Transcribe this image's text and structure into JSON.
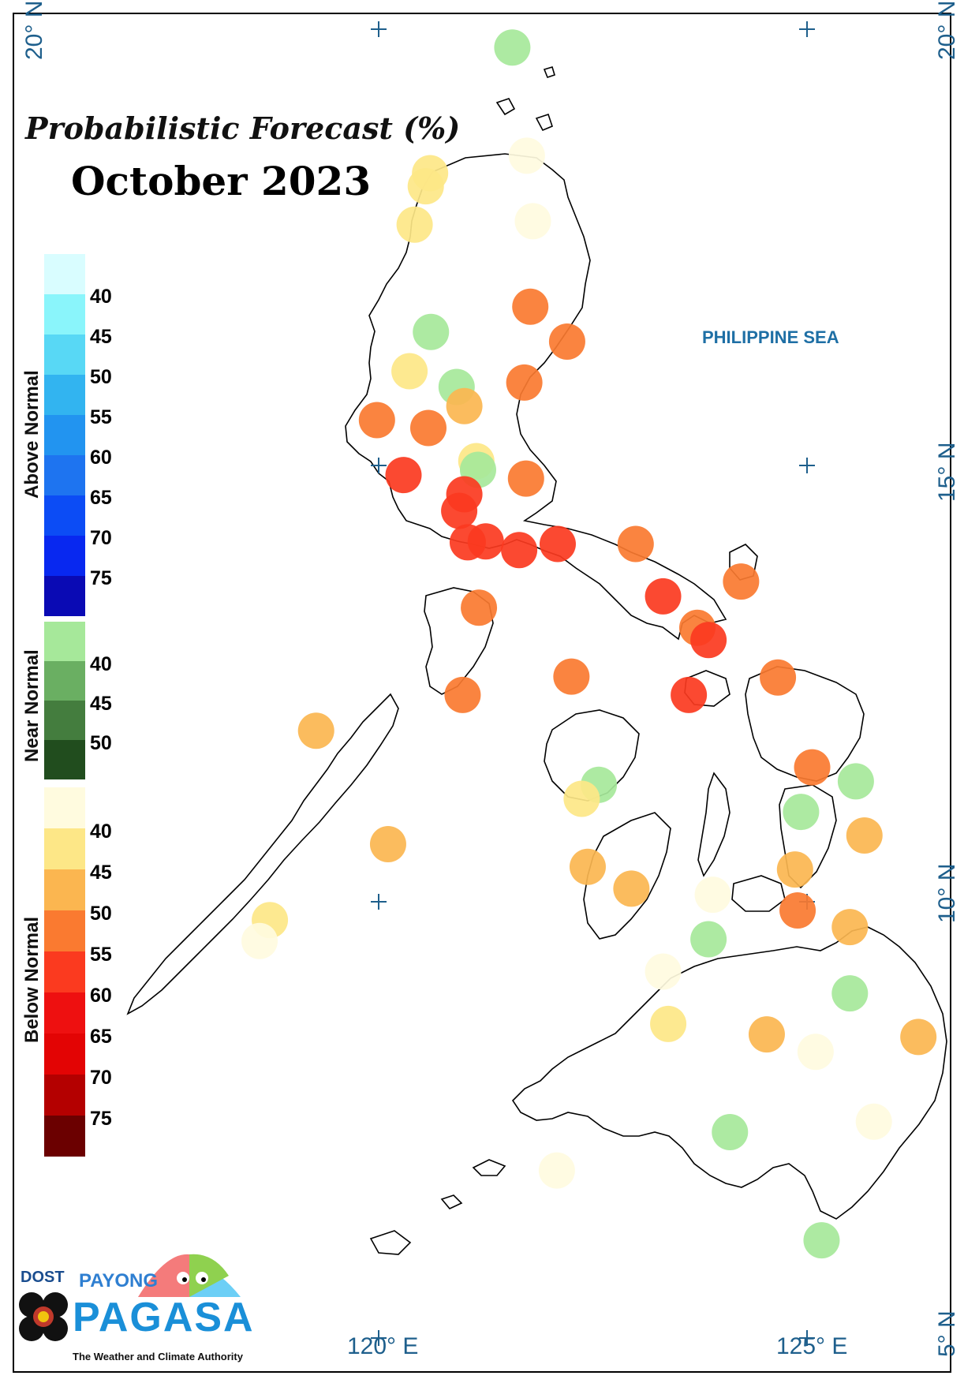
{
  "title": "Probabilistic Forecast (%)",
  "subtitle": "October 2023",
  "sea_label": "PHILIPPINE SEA",
  "lat_labels": {
    "top_left": "20° N",
    "top_right": "20° N",
    "mid": "15° N",
    "low": "10° N",
    "bottom": "5° N"
  },
  "lon_labels": {
    "west": "120° E",
    "east": "125° E"
  },
  "legend": {
    "above": {
      "name": "Above Normal",
      "ticks": [
        "40",
        "45",
        "50",
        "55",
        "60",
        "65",
        "70",
        "75"
      ],
      "colors": [
        "#d9fdff",
        "#8af5fb",
        "#58d8f5",
        "#32b4f0",
        "#2294f0",
        "#1e74f0",
        "#0c4cf5",
        "#0828f0",
        "#0a0ab4"
      ]
    },
    "near": {
      "name": "Near Normal",
      "ticks": [
        "40",
        "45",
        "50"
      ],
      "colors": [
        "#a6e89a",
        "#6aaf62",
        "#447d3e",
        "#214d1e"
      ]
    },
    "below": {
      "name": "Below Normal",
      "ticks": [
        "40",
        "45",
        "50",
        "55",
        "60",
        "65",
        "70",
        "75"
      ],
      "colors": [
        "#fffbdf",
        "#fde787",
        "#fbb650",
        "#fa7a30",
        "#fb3a1f",
        "#ee1010",
        "#e30404",
        "#b40000",
        "#6b0000"
      ]
    }
  },
  "logo": {
    "dost": "DOST",
    "payong": "PAYONG",
    "pagasa": "PAGASA",
    "tagline": "The Weather and Climate Authority"
  },
  "stations": [
    {
      "lon": 121.56,
      "lat": 19.79,
      "cat": "near40"
    },
    {
      "lon": 121.73,
      "lat": 18.55,
      "cat": "below40"
    },
    {
      "lon": 120.6,
      "lat": 18.35,
      "cat": "below45"
    },
    {
      "lon": 120.55,
      "lat": 18.2,
      "cat": "below45"
    },
    {
      "lon": 121.8,
      "lat": 17.8,
      "cat": "below40"
    },
    {
      "lon": 120.42,
      "lat": 17.76,
      "cat": "below45"
    },
    {
      "lon": 121.77,
      "lat": 16.82,
      "cat": "below55"
    },
    {
      "lon": 120.61,
      "lat": 16.53,
      "cat": "near40"
    },
    {
      "lon": 122.2,
      "lat": 16.42,
      "cat": "below55"
    },
    {
      "lon": 120.36,
      "lat": 16.08,
      "cat": "below45"
    },
    {
      "lon": 121.7,
      "lat": 15.95,
      "cat": "below55"
    },
    {
      "lon": 120.91,
      "lat": 15.9,
      "cat": "near40"
    },
    {
      "lon": 121.0,
      "lat": 15.68,
      "cat": "below50"
    },
    {
      "lon": 119.98,
      "lat": 15.52,
      "cat": "below55"
    },
    {
      "lon": 120.58,
      "lat": 15.43,
      "cat": "below55"
    },
    {
      "lon": 121.14,
      "lat": 15.05,
      "cat": "below45"
    },
    {
      "lon": 121.16,
      "lat": 14.95,
      "cat": "near40"
    },
    {
      "lon": 121.72,
      "lat": 14.85,
      "cat": "below55"
    },
    {
      "lon": 120.29,
      "lat": 14.89,
      "cat": "below60"
    },
    {
      "lon": 121.0,
      "lat": 14.67,
      "cat": "below60"
    },
    {
      "lon": 120.94,
      "lat": 14.48,
      "cat": "below60"
    },
    {
      "lon": 121.04,
      "lat": 14.12,
      "cat": "below60"
    },
    {
      "lon": 121.25,
      "lat": 14.13,
      "cat": "below60"
    },
    {
      "lon": 121.64,
      "lat": 14.03,
      "cat": "below60"
    },
    {
      "lon": 122.09,
      "lat": 14.1,
      "cat": "below60"
    },
    {
      "lon": 123.0,
      "lat": 14.1,
      "cat": "below55"
    },
    {
      "lon": 124.23,
      "lat": 13.67,
      "cat": "below55"
    },
    {
      "lon": 123.32,
      "lat": 13.5,
      "cat": "below60"
    },
    {
      "lon": 123.72,
      "lat": 13.14,
      "cat": "below55"
    },
    {
      "lon": 123.85,
      "lat": 13.0,
      "cat": "below60"
    },
    {
      "lon": 121.17,
      "lat": 13.37,
      "cat": "below55"
    },
    {
      "lon": 122.25,
      "lat": 12.58,
      "cat": "below55"
    },
    {
      "lon": 123.62,
      "lat": 12.37,
      "cat": "below60"
    },
    {
      "lon": 120.98,
      "lat": 12.37,
      "cat": "below55"
    },
    {
      "lon": 124.66,
      "lat": 12.57,
      "cat": "below55"
    },
    {
      "lon": 119.27,
      "lat": 11.96,
      "cat": "below50"
    },
    {
      "lon": 125.06,
      "lat": 11.54,
      "cat": "below55"
    },
    {
      "lon": 125.57,
      "lat": 11.38,
      "cat": "near40"
    },
    {
      "lon": 122.57,
      "lat": 11.34,
      "cat": "near40"
    },
    {
      "lon": 122.37,
      "lat": 11.18,
      "cat": "below45"
    },
    {
      "lon": 124.93,
      "lat": 11.03,
      "cat": "near40"
    },
    {
      "lon": 125.67,
      "lat": 10.76,
      "cat": "below50"
    },
    {
      "lon": 120.11,
      "lat": 10.66,
      "cat": "below50"
    },
    {
      "lon": 122.44,
      "lat": 10.4,
      "cat": "below50"
    },
    {
      "lon": 124.86,
      "lat": 10.37,
      "cat": "below50"
    },
    {
      "lon": 122.95,
      "lat": 10.15,
      "cat": "below50"
    },
    {
      "lon": 123.9,
      "lat": 10.08,
      "cat": "below40"
    },
    {
      "lon": 124.89,
      "lat": 9.9,
      "cat": "below55"
    },
    {
      "lon": 125.5,
      "lat": 9.71,
      "cat": "below50"
    },
    {
      "lon": 118.73,
      "lat": 9.79,
      "cat": "below45"
    },
    {
      "lon": 118.61,
      "lat": 9.55,
      "cat": "below40"
    },
    {
      "lon": 123.85,
      "lat": 9.57,
      "cat": "near40"
    },
    {
      "lon": 123.32,
      "lat": 9.2,
      "cat": "below40"
    },
    {
      "lon": 125.5,
      "lat": 8.95,
      "cat": "near40"
    },
    {
      "lon": 123.38,
      "lat": 8.6,
      "cat": "below45"
    },
    {
      "lon": 124.53,
      "lat": 8.48,
      "cat": "below50"
    },
    {
      "lon": 125.1,
      "lat": 8.28,
      "cat": "below40"
    },
    {
      "lon": 126.3,
      "lat": 8.45,
      "cat": "below50"
    },
    {
      "lon": 124.1,
      "lat": 7.36,
      "cat": "near40"
    },
    {
      "lon": 125.78,
      "lat": 7.48,
      "cat": "below40"
    },
    {
      "lon": 122.08,
      "lat": 6.92,
      "cat": "below40"
    },
    {
      "lon": 125.17,
      "lat": 6.12,
      "cat": "near40"
    }
  ]
}
